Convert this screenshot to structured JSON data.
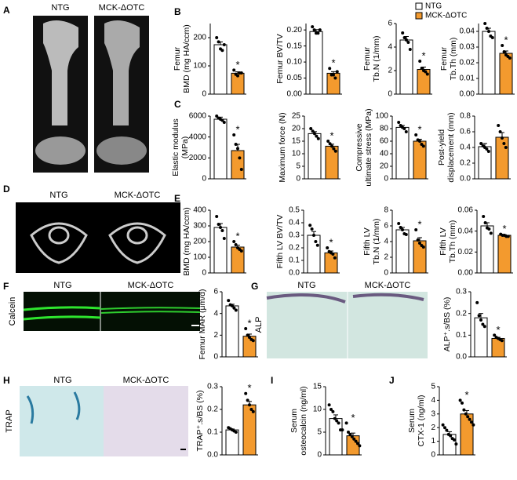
{
  "figure": {
    "panels": [
      "A",
      "B",
      "C",
      "D",
      "E",
      "F",
      "G",
      "H",
      "I",
      "J"
    ],
    "legend": [
      {
        "name": "NTG",
        "color": "#ffffff"
      },
      {
        "name": "MCK-ΔOTC",
        "color": "#f39a2e"
      }
    ],
    "image_labels": [
      [
        "NTG",
        "MCK-ΔOTC"
      ],
      [
        "NTG",
        "MCK-ΔOTC"
      ],
      [
        "NTG",
        "MCK-ΔOTC"
      ],
      [
        "NTG",
        "MCK-ΔOTC"
      ],
      [
        "NTG",
        "MCK-ΔOTC"
      ]
    ],
    "side_labels": [
      "Calcein",
      "ALP",
      "TRAP"
    ]
  },
  "chart_data": [
    {
      "type": "bar",
      "ylabel": [
        "Femur",
        "BMD (mg HA/ccm)"
      ],
      "values": [
        175,
        74
      ],
      "errors": [
        10,
        5
      ],
      "points": [
        [
          200,
          185,
          160,
          155,
          175
        ],
        [
          85,
          70,
          65,
          75,
          75
        ]
      ],
      "ylim": [
        0,
        250
      ],
      "yticks": [
        0,
        100,
        200
      ],
      "annotation": "*"
    },
    {
      "type": "bar",
      "ylabel": [
        "Femur BV/TV"
      ],
      "values": [
        0.195,
        0.065
      ],
      "errors": [
        0.006,
        0.005
      ],
      "points": [
        [
          0.21,
          0.2,
          0.19,
          0.19,
          0.2
        ],
        [
          0.08,
          0.06,
          0.06,
          0.05,
          0.07
        ]
      ],
      "ylim": [
        0,
        0.22
      ],
      "yticks": [
        {
          "value": 0,
          "label": "0.00"
        },
        {
          "value": 0.05,
          "label": "0.05"
        },
        {
          "value": 0.1,
          "label": "0.10"
        },
        {
          "value": 0.15,
          "label": "0.15"
        },
        {
          "value": 0.2,
          "label": "0.20"
        }
      ],
      "annotation": "*"
    },
    {
      "type": "bar",
      "ylabel": [
        "Femur",
        "Tb.N (1/mm)"
      ],
      "values": [
        4.6,
        2.1
      ],
      "errors": [
        0.3,
        0.2
      ],
      "points": [
        [
          5.2,
          4.8,
          4.6,
          4.4,
          3.8
        ],
        [
          2.8,
          2.2,
          2.0,
          1.9,
          1.7
        ]
      ],
      "ylim": [
        0,
        6
      ],
      "yticks": [
        0,
        2,
        4,
        6
      ],
      "annotation": "*"
    },
    {
      "type": "bar",
      "ylabel": [
        "Femur",
        "Tb.Th (mm)"
      ],
      "values": [
        0.04,
        0.026
      ],
      "errors": [
        0.002,
        0.0015
      ],
      "points": [
        [
          0.045,
          0.042,
          0.04,
          0.037,
          0.036
        ],
        [
          0.031,
          0.027,
          0.025,
          0.024,
          0.023
        ]
      ],
      "ylim": [
        0,
        0.045
      ],
      "yticks": [
        {
          "value": 0,
          "label": "0.00"
        },
        {
          "value": 0.01,
          "label": "0.01"
        },
        {
          "value": 0.02,
          "label": "0.02"
        },
        {
          "value": 0.03,
          "label": "0.03"
        },
        {
          "value": 0.04,
          "label": "0.04"
        }
      ],
      "annotation": "*"
    },
    {
      "type": "bar",
      "ylabel": [
        "Elastic modulus",
        "(MPa)"
      ],
      "values": [
        5700,
        2700
      ],
      "errors": [
        200,
        600
      ],
      "points": [
        [
          6000,
          5800,
          5700,
          5600,
          5400
        ],
        [
          4200,
          3300,
          2900,
          2000,
          900
        ]
      ],
      "ylim": [
        0,
        6000
      ],
      "yticks": [
        0,
        2000,
        4000,
        6000
      ],
      "annotation": "*"
    },
    {
      "type": "bar",
      "ylabel": [
        "Maximum force (N)"
      ],
      "values": [
        18,
        13
      ],
      "errors": [
        0.8,
        0.8
      ],
      "points": [
        [
          20,
          19,
          18,
          17,
          16
        ],
        [
          15,
          14,
          13,
          12,
          11
        ]
      ],
      "ylim": [
        0,
        25
      ],
      "yticks": [
        0,
        5,
        10,
        15,
        20,
        25
      ],
      "annotation": "*"
    },
    {
      "type": "bar",
      "ylabel": [
        "Compressive",
        "ultimate stress (MPa)"
      ],
      "values": [
        82,
        60
      ],
      "errors": [
        3,
        3
      ],
      "points": [
        [
          90,
          85,
          82,
          80,
          75
        ],
        [
          70,
          62,
          60,
          55,
          52
        ]
      ],
      "ylim": [
        0,
        100
      ],
      "yticks": [
        0,
        20,
        40,
        60,
        80,
        100
      ],
      "annotation": "*"
    },
    {
      "type": "bar",
      "ylabel": [
        "Post-yield",
        "displacement (mm)"
      ],
      "values": [
        0.41,
        0.53
      ],
      "errors": [
        0.04,
        0.06
      ],
      "points": [
        [
          0.45,
          0.42,
          0.4,
          0.38,
          0.35
        ],
        [
          0.68,
          0.6,
          0.52,
          0.45,
          0.4
        ]
      ],
      "ylim": [
        0,
        0.8
      ],
      "yticks": [
        {
          "value": 0,
          "label": "0.0"
        },
        {
          "value": 0.2,
          "label": "0.2"
        },
        {
          "value": 0.4,
          "label": "0.4"
        },
        {
          "value": 0.6,
          "label": "0.6"
        },
        {
          "value": 0.8,
          "label": "0.8"
        }
      ]
    },
    {
      "type": "bar",
      "ylabel": [
        "Fifth LV",
        "BMD (mg HA/ccm)"
      ],
      "values": [
        290,
        165
      ],
      "errors": [
        25,
        12
      ],
      "points": [
        [
          360,
          310,
          290,
          270,
          220
        ],
        [
          200,
          180,
          160,
          150,
          140
        ]
      ],
      "ylim": [
        0,
        400
      ],
      "yticks": [
        0,
        100,
        200,
        300,
        400
      ],
      "annotation": "*"
    },
    {
      "type": "bar",
      "ylabel": [
        "Fifth LV BV/TV"
      ],
      "values": [
        0.3,
        0.16
      ],
      "errors": [
        0.03,
        0.015
      ],
      "points": [
        [
          0.38,
          0.35,
          0.3,
          0.25,
          0.22
        ],
        [
          0.2,
          0.17,
          0.16,
          0.15,
          0.12
        ]
      ],
      "ylim": [
        0,
        0.5
      ],
      "yticks": [
        {
          "value": 0,
          "label": "0.0"
        },
        {
          "value": 0.1,
          "label": "0.1"
        },
        {
          "value": 0.2,
          "label": "0.2"
        },
        {
          "value": 0.3,
          "label": "0.3"
        },
        {
          "value": 0.4,
          "label": "0.4"
        },
        {
          "value": 0.5,
          "label": "0.5"
        }
      ],
      "annotation": "*"
    },
    {
      "type": "bar",
      "ylabel": [
        "Fifth LV",
        "Tb.N (1/mm)"
      ],
      "values": [
        5.5,
        4.1
      ],
      "errors": [
        0.3,
        0.4
      ],
      "points": [
        [
          6.3,
          5.8,
          5.5,
          5.0,
          4.9
        ],
        [
          5.5,
          4.2,
          3.8,
          3.5,
          3.3
        ]
      ],
      "ylim": [
        0,
        8
      ],
      "yticks": [
        0,
        2,
        4,
        6,
        8
      ],
      "annotation": "*"
    },
    {
      "type": "bar",
      "ylabel": [
        "Fifth LV",
        "Tb.Th (mm)"
      ],
      "values": [
        0.045,
        0.036
      ],
      "errors": [
        0.003,
        0.0005
      ],
      "points": [
        [
          0.054,
          0.048,
          0.043,
          0.042,
          0.038
        ],
        [
          0.037,
          0.036,
          0.036,
          0.035,
          0.035
        ]
      ],
      "ylim": [
        0,
        0.06
      ],
      "yticks": [
        {
          "value": 0,
          "label": "0.00"
        },
        {
          "value": 0.02,
          "label": "0.02"
        },
        {
          "value": 0.04,
          "label": "0.04"
        },
        {
          "value": 0.06,
          "label": "0.06"
        }
      ],
      "annotation": "*"
    },
    {
      "type": "bar",
      "ylabel": [
        "Femur MAR (μm/d)"
      ],
      "values": [
        4.7,
        1.9
      ],
      "errors": [
        0.15,
        0.2
      ],
      "points": [
        [
          5.2,
          4.8,
          4.7,
          4.5,
          4.3
        ],
        [
          2.6,
          2.0,
          1.8,
          1.6,
          1.5
        ]
      ],
      "ylim": [
        0,
        6
      ],
      "yticks": [
        0,
        2,
        4,
        6
      ],
      "annotation": "*"
    },
    {
      "type": "bar",
      "ylabel": [
        "ALP⁺.s/BS (%)"
      ],
      "values": [
        0.18,
        0.085
      ],
      "errors": [
        0.02,
        0.005
      ],
      "points": [
        [
          0.25,
          0.19,
          0.17,
          0.15,
          0.14
        ],
        [
          0.1,
          0.09,
          0.085,
          0.08,
          0.075
        ]
      ],
      "ylim": [
        0,
        0.3
      ],
      "yticks": [
        {
          "value": 0,
          "label": "0.0"
        },
        {
          "value": 0.1,
          "label": "0.1"
        },
        {
          "value": 0.2,
          "label": "0.2"
        },
        {
          "value": 0.3,
          "label": "0.3"
        }
      ],
      "annotation": "*"
    },
    {
      "type": "bar",
      "ylabel": [
        "TRAP⁺.s/BS (%)"
      ],
      "values": [
        0.11,
        0.22
      ],
      "errors": [
        0.004,
        0.015
      ],
      "points": [
        [
          0.12,
          0.115,
          0.11,
          0.105,
          0.1
        ],
        [
          0.27,
          0.24,
          0.22,
          0.2,
          0.19
        ]
      ],
      "ylim": [
        0,
        0.3
      ],
      "yticks": [
        {
          "value": 0,
          "label": "0.0"
        },
        {
          "value": 0.1,
          "label": "0.1"
        },
        {
          "value": 0.2,
          "label": "0.2"
        },
        {
          "value": 0.3,
          "label": "0.3"
        }
      ],
      "annotation": "*"
    },
    {
      "type": "bar",
      "ylabel": [
        "Serum",
        "osteocalcin (ng/ml)"
      ],
      "values": [
        8,
        4.2
      ],
      "errors": [
        0.8,
        0.6
      ],
      "points": [
        [
          11,
          10,
          9.5,
          8,
          7.5,
          7,
          5.5,
          5.5
        ],
        [
          7,
          5,
          4.5,
          4,
          3.5,
          3,
          2.5,
          2
        ]
      ],
      "ylim": [
        0,
        15
      ],
      "yticks": [
        0,
        5,
        10,
        15
      ],
      "annotation": "*"
    },
    {
      "type": "bar",
      "ylabel": [
        "Serum",
        "CTX-1 (ng/ml)"
      ],
      "values": [
        1.5,
        3.0
      ],
      "errors": [
        0.2,
        0.25
      ],
      "points": [
        [
          2.2,
          2.0,
          1.8,
          1.5,
          1.4,
          1.2,
          1.1,
          0.8
        ],
        [
          4.0,
          3.8,
          3.3,
          3.0,
          2.8,
          2.6,
          2.4,
          2.2
        ]
      ],
      "ylim": [
        0,
        5
      ],
      "yticks": [
        0,
        1,
        2,
        3,
        4,
        5
      ],
      "annotation": "*"
    }
  ]
}
